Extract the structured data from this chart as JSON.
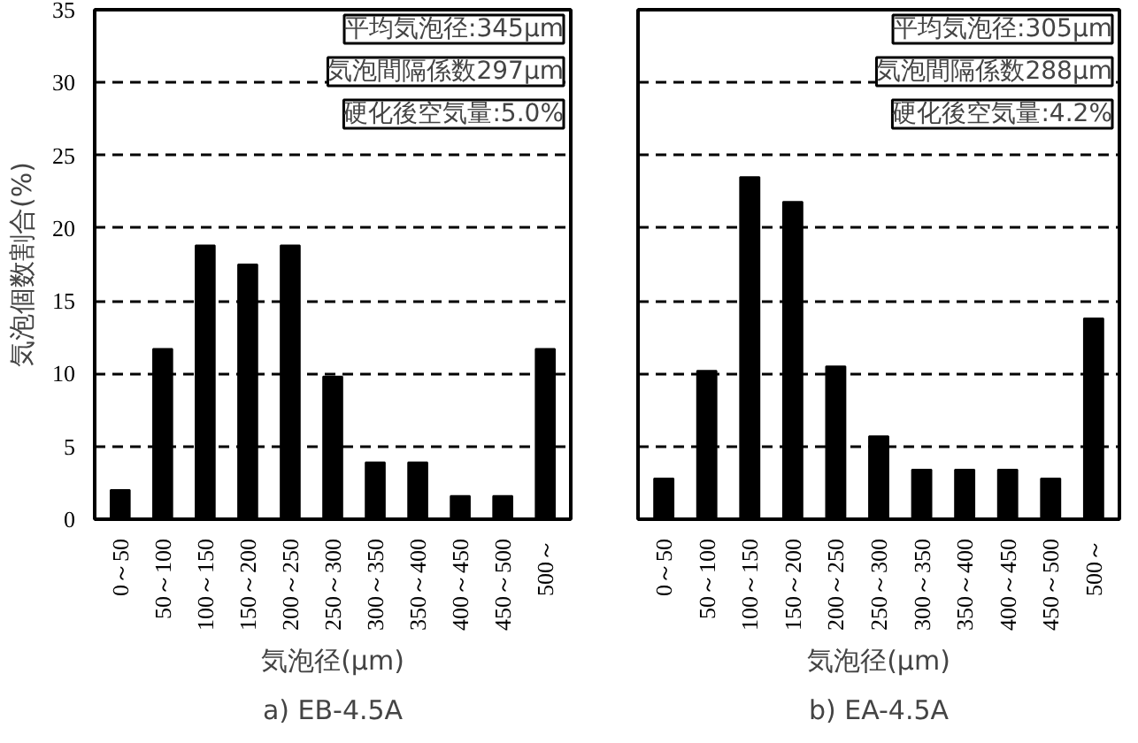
{
  "chart_data": [
    {
      "type": "bar",
      "title": "a) EB-4.5A",
      "xlabel": "気泡径(μm)",
      "ylabel": "気泡個数割合(%)",
      "categories": [
        "0～50",
        "50～100",
        "100～150",
        "150～200",
        "200～250",
        "250～300",
        "300～350",
        "350～400",
        "400～450",
        "450～500",
        "500～"
      ],
      "values": [
        2,
        11.7,
        18.8,
        17.5,
        18.8,
        9.8,
        3.9,
        3.9,
        1.6,
        1.6,
        11.7
      ],
      "color": "#000000",
      "ylim": [
        0,
        35
      ],
      "yticks": [
        0,
        5,
        10,
        15,
        20,
        25,
        30,
        35
      ],
      "grid": "y",
      "annotations": [
        "平均気泡径:345μm",
        "気泡間隔係数297μm",
        "硬化後空気量:5.0%"
      ]
    },
    {
      "type": "bar",
      "title": "b) EA-4.5A",
      "xlabel": "気泡径(μm)",
      "categories": [
        "0～50",
        "50～100",
        "100～150",
        "150～200",
        "200～250",
        "250～300",
        "300～350",
        "350～400",
        "400～450",
        "450～500",
        "500～"
      ],
      "values": [
        2.8,
        10.2,
        23.5,
        21.8,
        10.5,
        5.7,
        3.4,
        3.4,
        3.4,
        2.8,
        13.8
      ],
      "color": "#000000",
      "ylim": [
        0,
        35
      ],
      "yticks": [
        0,
        5,
        10,
        15,
        20,
        25,
        30,
        35
      ],
      "grid": "y",
      "tick_labels": "x",
      "annotations": [
        "平均気泡径:305μm",
        "気泡間隔係数288μm",
        "硬化後空気量:4.2%"
      ]
    }
  ]
}
